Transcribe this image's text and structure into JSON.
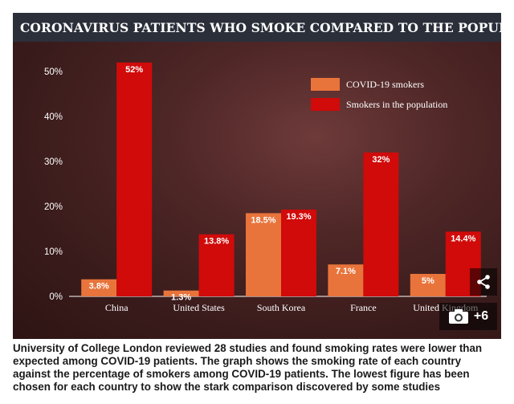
{
  "figure": {
    "title": "CORONAVIRUS PATIENTS WHO SMOKE COMPARED TO THE POPULATION",
    "gallery_count": "+6",
    "icons": {
      "share": "share-icon",
      "gallery": "camera-icon"
    }
  },
  "chart_data": {
    "type": "bar",
    "title": "CORONAVIRUS PATIENTS WHO SMOKE COMPARED TO THE POPULATION",
    "categories": [
      "China",
      "United States",
      "South Korea",
      "France",
      "United Kingdom"
    ],
    "series": [
      {
        "name": "COVID-19 smokers",
        "values": [
          3.8,
          1.3,
          18.5,
          7.1,
          5
        ],
        "labels": [
          "3.8%",
          "1.3%",
          "18.5%",
          "7.1%",
          "5%"
        ],
        "color": "#e8743b"
      },
      {
        "name": "Smokers in the population",
        "values": [
          52,
          13.8,
          19.3,
          32,
          14.4
        ],
        "labels": [
          "52%",
          "13.8%",
          "19.3%",
          "32%",
          "14.4%"
        ],
        "color": "#d10a0a"
      }
    ],
    "yticks": [
      "0%",
      "10%",
      "20%",
      "30%",
      "40%",
      "50%"
    ],
    "ylim": [
      0,
      50
    ],
    "xlabel": "",
    "ylabel": "",
    "legend": "top-right",
    "grid": false
  },
  "caption": "University of College London reviewed 28 studies and found smoking rates were lower than expected among COVID-19 patients. The graph shows the smoking rate of each country against the percentage of smokers among COVID-19 patients. The lowest figure has been chosen for each country to show the stark comparison discovered by some studies"
}
